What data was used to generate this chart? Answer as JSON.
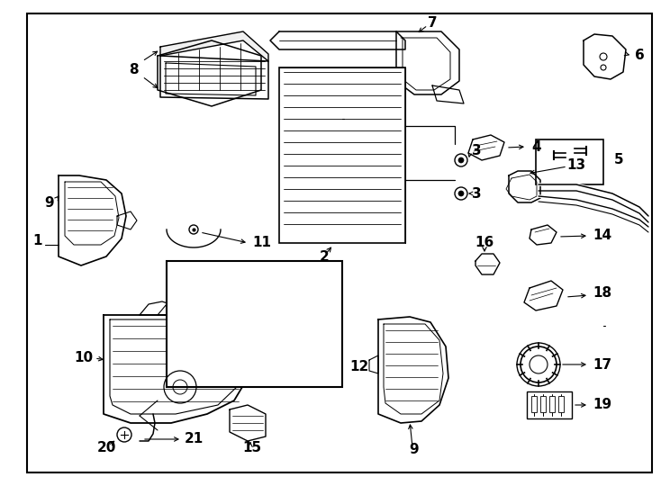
{
  "background_color": "#ffffff",
  "border_color": "#000000",
  "line_color": "#000000",
  "text_color": "#000000",
  "fig_width": 7.34,
  "fig_height": 5.4,
  "dpi": 100
}
